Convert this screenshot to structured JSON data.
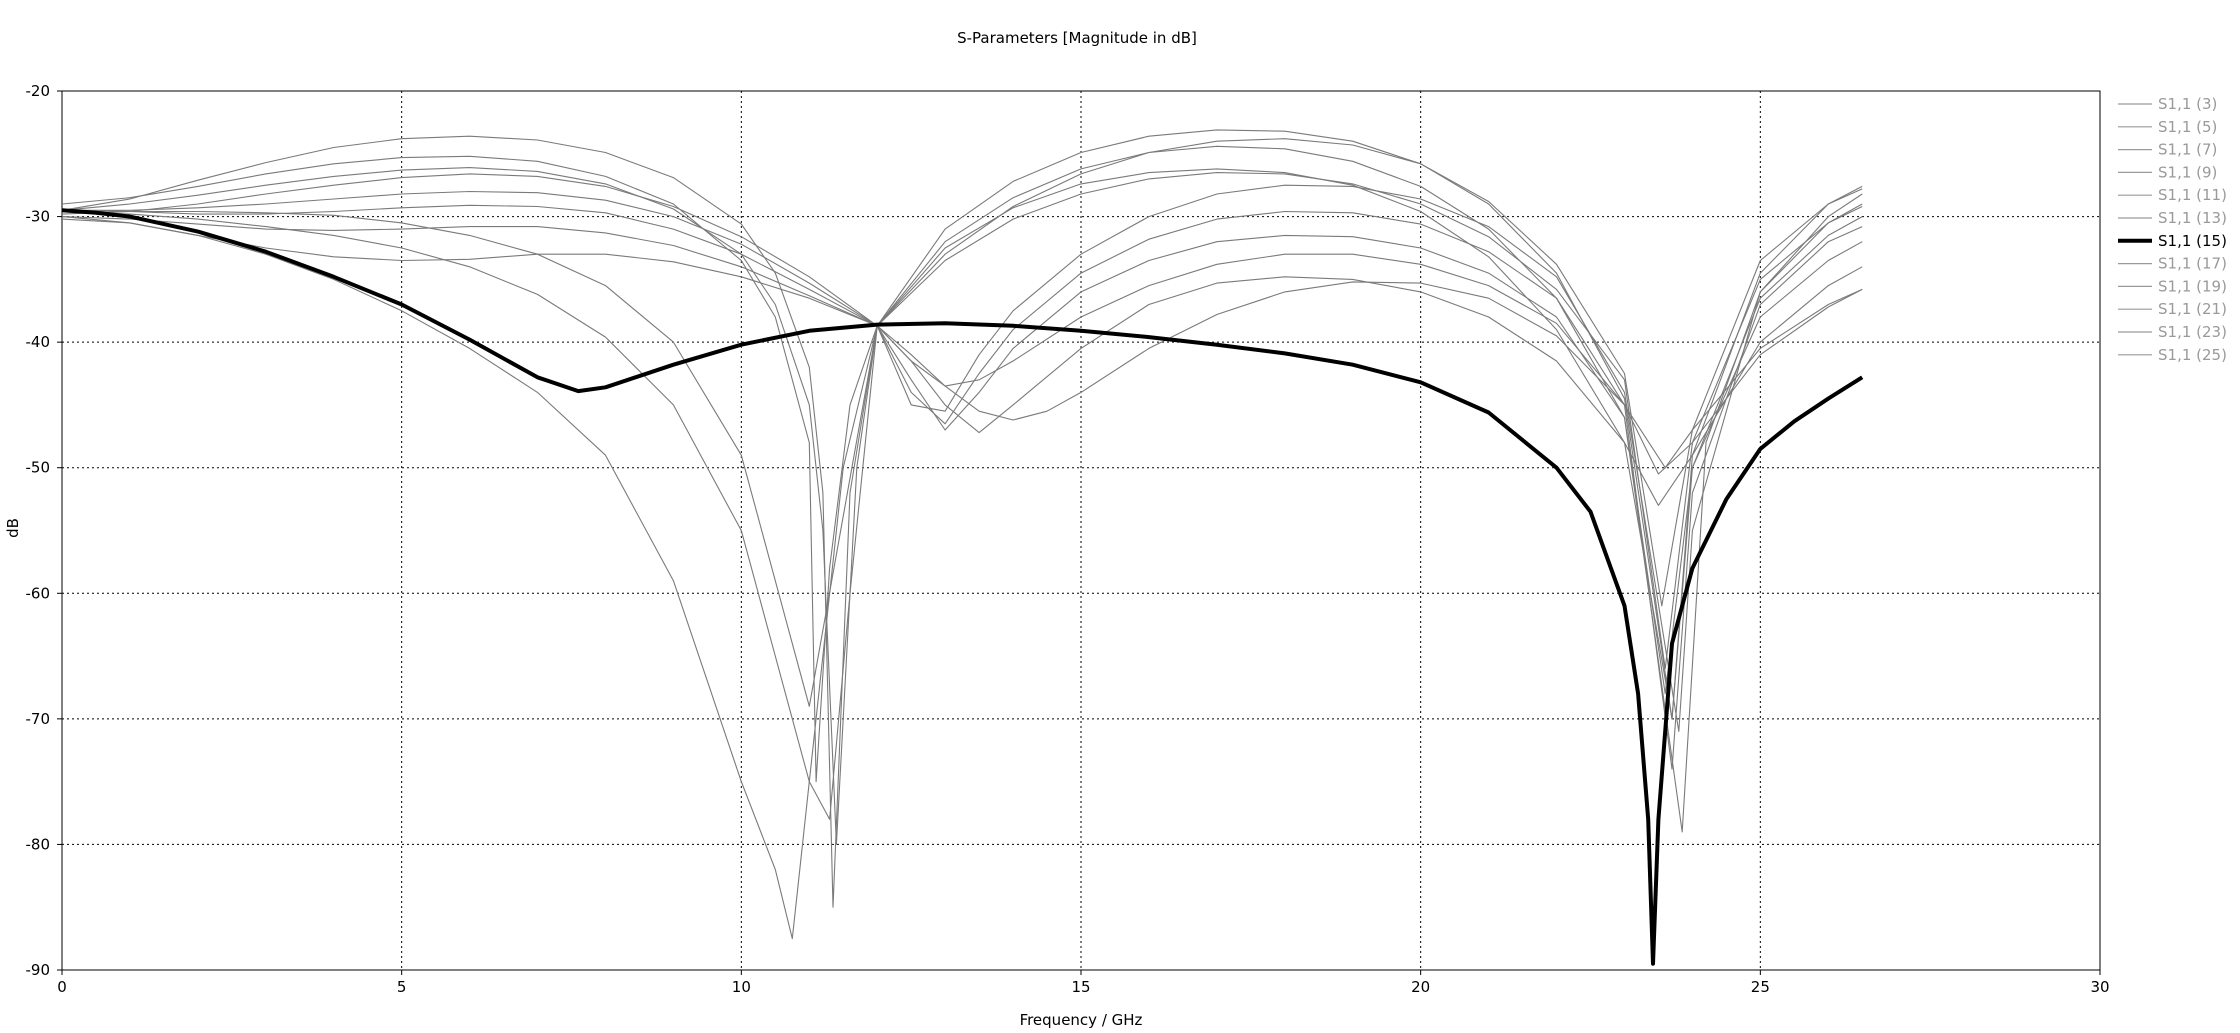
{
  "chart_data": {
    "type": "line",
    "title": "S-Parameters [Magnitude in dB]",
    "xlabel": "Frequency / GHz",
    "ylabel": "dB",
    "xlim": [
      0,
      30
    ],
    "ylim": [
      -90,
      -20
    ],
    "xticks": [
      0,
      5,
      10,
      15,
      20,
      25,
      30
    ],
    "yticks": [
      -20,
      -30,
      -40,
      -50,
      -60,
      -70,
      -80,
      -90
    ],
    "grid": true,
    "legend_position": "right",
    "colors": {
      "inactive": "#7a7a7a",
      "active": "#000000"
    },
    "series": [
      {
        "name": "S1,1 (3)",
        "active": false,
        "x": [
          0,
          1,
          2,
          3,
          4,
          5,
          6,
          7,
          8,
          9,
          10,
          11,
          12,
          12.5,
          13,
          13.5,
          14,
          14.5,
          15,
          16,
          17,
          18,
          19,
          20,
          21,
          22,
          23,
          23.5,
          24,
          25,
          26,
          26.5
        ],
        "y": [
          -30.2,
          -30.5,
          -31.5,
          -32.5,
          -33.2,
          -33.5,
          -33.4,
          -33.0,
          -33.0,
          -33.6,
          -34.8,
          -36.5,
          -38.7,
          -41,
          -43.5,
          -45.5,
          -46.2,
          -45.5,
          -44,
          -40.5,
          -37.8,
          -36,
          -35.2,
          -35.3,
          -36.5,
          -39.5,
          -45,
          -50.5,
          -48,
          -41,
          -37.2,
          -35.8
        ]
      },
      {
        "name": "S1,1 (5)",
        "active": false,
        "x": [
          0,
          1,
          2,
          3,
          4,
          5,
          6,
          7,
          8,
          9,
          10,
          11,
          12,
          12.5,
          13,
          13.5,
          14,
          15,
          16,
          17,
          18,
          19,
          20,
          21,
          22,
          23,
          23.5,
          24,
          25,
          26,
          26.5
        ],
        "y": [
          -30,
          -30.2,
          -30.6,
          -31,
          -31.1,
          -31,
          -30.8,
          -30.8,
          -31.3,
          -32.3,
          -34,
          -36.3,
          -38.7,
          -41.5,
          -45,
          -47.2,
          -45,
          -40.5,
          -37,
          -35.3,
          -34.8,
          -35,
          -36,
          -38,
          -41.5,
          -48,
          -53,
          -49,
          -40,
          -35.5,
          -34
        ]
      },
      {
        "name": "S1,1 (7)",
        "active": false,
        "x": [
          0,
          1,
          2,
          3,
          4,
          5,
          6,
          7,
          8,
          9,
          10,
          11,
          12,
          12.5,
          13,
          13.5,
          14,
          15,
          16,
          17,
          18,
          19,
          20,
          21,
          22,
          23,
          23.6,
          24,
          25,
          26,
          26.5
        ],
        "y": [
          -29.5,
          -29.6,
          -29.8,
          -29.8,
          -29.6,
          -29.3,
          -29.1,
          -29.2,
          -29.7,
          -31,
          -33,
          -35.8,
          -38.7,
          -43,
          -47,
          -44,
          -40.5,
          -36,
          -33.5,
          -32,
          -31.5,
          -31.6,
          -32.5,
          -34.5,
          -38,
          -46,
          -68,
          -50,
          -38,
          -33.5,
          -32
        ]
      },
      {
        "name": "S1,1 (9)",
        "active": false,
        "x": [
          0,
          1,
          2,
          3,
          4,
          5,
          6,
          7,
          8,
          9,
          10,
          11,
          12,
          12.5,
          13,
          13.5,
          14,
          15,
          16,
          17,
          18,
          19,
          20,
          21,
          22,
          23,
          23.7,
          24,
          25,
          26,
          26.5
        ],
        "y": [
          -29.5,
          -29.5,
          -29.3,
          -29,
          -28.6,
          -28.2,
          -28,
          -28.1,
          -28.7,
          -30,
          -32.2,
          -35.3,
          -38.7,
          -44,
          -46.5,
          -42.5,
          -39,
          -34.5,
          -31.8,
          -30.2,
          -29.6,
          -29.7,
          -30.6,
          -32.8,
          -36.5,
          -45,
          -74,
          -52,
          -37,
          -32,
          -30.8
        ]
      },
      {
        "name": "S1,1 (11)",
        "active": false,
        "x": [
          0,
          1,
          2,
          3,
          4,
          5,
          6,
          7,
          8,
          9,
          10,
          11,
          12,
          12.5,
          13,
          13.5,
          14,
          15,
          16,
          17,
          18,
          19,
          20,
          21,
          22,
          23,
          23.8,
          24,
          25,
          26,
          26.5
        ],
        "y": [
          -29.8,
          -29.6,
          -29.0,
          -28.2,
          -27.5,
          -26.9,
          -26.6,
          -26.8,
          -27.6,
          -29.2,
          -31.6,
          -34.8,
          -38.7,
          -45,
          -45.5,
          -41,
          -37.5,
          -33,
          -30,
          -28.2,
          -27.5,
          -27.6,
          -28.6,
          -30.8,
          -34.8,
          -44,
          -71,
          -55,
          -36,
          -30.5,
          -29.2
        ]
      },
      {
        "name": "S1,1 (13)",
        "active": false,
        "x": [
          0,
          1,
          2,
          3,
          4,
          5,
          6,
          7,
          8,
          9,
          10,
          11,
          12,
          12.5,
          13,
          13.5,
          14,
          15,
          16,
          17,
          18,
          19,
          20,
          21,
          22,
          23,
          23.6,
          24,
          25,
          26,
          26.5
        ],
        "y": [
          -29.5,
          -29.6,
          -29.6,
          -29.7,
          -29.9,
          -30.5,
          -31.5,
          -33.0,
          -35.5,
          -40,
          -49,
          -69,
          -38.7,
          -41.5,
          -43.5,
          -43,
          -41.5,
          -38,
          -35.5,
          -33.8,
          -33,
          -33,
          -33.8,
          -35.5,
          -38.5,
          -45,
          -50,
          -47,
          -40.5,
          -37,
          -35.8
        ]
      },
      {
        "name": "S1,1 (15)",
        "active": true,
        "x": [
          0,
          0.5,
          1,
          2,
          3,
          4,
          5,
          6,
          7,
          7.6,
          8,
          9,
          10,
          11,
          12,
          13,
          14,
          15,
          16,
          17,
          18,
          19,
          20,
          21,
          22,
          22.5,
          23,
          23.2,
          23.35,
          23.42,
          23.5,
          23.7,
          24,
          24.5,
          25,
          25.5,
          26,
          26.5
        ],
        "y": [
          -29.5,
          -29.7,
          -30,
          -31.2,
          -32.8,
          -34.8,
          -37,
          -39.8,
          -42.8,
          -43.9,
          -43.6,
          -41.8,
          -40.2,
          -39.1,
          -38.6,
          -38.5,
          -38.7,
          -39.1,
          -39.6,
          -40.2,
          -40.9,
          -41.8,
          -43.2,
          -45.6,
          -50,
          -53.5,
          -61,
          -68,
          -78,
          -89.5,
          -78,
          -64,
          -58,
          -52.5,
          -48.5,
          -46.3,
          -44.5,
          -42.8
        ]
      },
      {
        "name": "S1,1 (17)",
        "active": false,
        "x": [
          0,
          1,
          2,
          3,
          4,
          5,
          6,
          7,
          8,
          9,
          9.5,
          10,
          10.5,
          10.75,
          11,
          11.5,
          12,
          13,
          14,
          15,
          16,
          17,
          18,
          19,
          20,
          21,
          22,
          23,
          23.55,
          24,
          25,
          26,
          26.5
        ],
        "y": [
          -30,
          -30.5,
          -31.5,
          -33,
          -35,
          -37.5,
          -40.5,
          -44,
          -49,
          -59,
          -67,
          -75,
          -82,
          -87.5,
          -75,
          -50,
          -38.7,
          -33,
          -29.2,
          -26.6,
          -24.9,
          -24,
          -23.8,
          -24.3,
          -25.8,
          -28.8,
          -33.8,
          -42.5,
          -61,
          -47,
          -33.5,
          -29,
          -27.8
        ]
      },
      {
        "name": "S1,1 (19)",
        "active": false,
        "x": [
          0,
          1,
          2,
          3,
          4,
          5,
          6,
          7,
          8,
          9,
          10,
          10.5,
          11,
          11.3,
          11.6,
          12,
          13,
          14,
          15,
          16,
          17,
          18,
          19,
          20,
          21,
          22,
          23,
          23.6,
          24,
          25,
          26,
          26.5
        ],
        "y": [
          -29.5,
          -29.8,
          -30.2,
          -30.8,
          -31.5,
          -32.5,
          -34,
          -36.2,
          -39.6,
          -45,
          -55,
          -65,
          -75,
          -78,
          -60,
          -38.7,
          -33.5,
          -30.2,
          -28.2,
          -27,
          -26.5,
          -26.6,
          -27.4,
          -29,
          -31.6,
          -35.8,
          -43,
          -66,
          -48,
          -35,
          -30.5,
          -29
        ]
      },
      {
        "name": "S1,1 (21)",
        "active": false,
        "x": [
          0,
          1,
          2,
          3,
          4,
          5,
          6,
          7,
          8,
          9,
          10,
          10.5,
          11,
          11.1,
          11.3,
          11.6,
          12,
          13,
          14,
          15,
          16,
          17,
          18,
          19,
          20,
          21,
          22,
          23,
          23.85,
          24.2,
          25,
          26,
          26.5
        ],
        "y": [
          -29,
          -28.5,
          -27.6,
          -26.6,
          -25.8,
          -25.3,
          -25.2,
          -25.6,
          -26.8,
          -29,
          -33.5,
          -38,
          -48,
          -75,
          -58,
          -45,
          -38.7,
          -32,
          -28.5,
          -26.2,
          -24.9,
          -24.4,
          -24.6,
          -25.6,
          -27.6,
          -31,
          -36.5,
          -46,
          -79,
          -48,
          -36,
          -30,
          -28.2
        ]
      },
      {
        "name": "S1,1 (23)",
        "active": false,
        "x": [
          0,
          1,
          2,
          3,
          4,
          5,
          6,
          7,
          8,
          9,
          10,
          10.5,
          11,
          11.2,
          11.4,
          11.7,
          12,
          13,
          14,
          15,
          16,
          17,
          18,
          19,
          20,
          21,
          22,
          23,
          23.7,
          24,
          25,
          26,
          26.5
        ],
        "y": [
          -29.5,
          -29,
          -28.3,
          -27.5,
          -26.8,
          -26.3,
          -26.1,
          -26.4,
          -27.4,
          -29.4,
          -33,
          -37,
          -45,
          -55,
          -80,
          -50,
          -38.7,
          -32.5,
          -29.3,
          -27.4,
          -26.5,
          -26.2,
          -26.5,
          -27.5,
          -29.6,
          -33.2,
          -39,
          -48,
          -70,
          -50,
          -36.5,
          -31.5,
          -30
        ]
      },
      {
        "name": "S1,1 (25)",
        "active": false,
        "x": [
          0,
          1,
          2,
          3,
          4,
          5,
          6,
          7,
          8,
          9,
          10,
          10.5,
          11,
          11.2,
          11.35,
          11.6,
          12,
          13,
          14,
          15,
          16,
          17,
          18,
          19,
          20,
          21,
          22,
          23,
          23.7,
          24,
          25,
          26,
          26.5
        ],
        "y": [
          -29.5,
          -28.6,
          -27.1,
          -25.7,
          -24.5,
          -23.8,
          -23.6,
          -23.9,
          -24.9,
          -26.9,
          -30.6,
          -34.5,
          -42,
          -52,
          -85,
          -52,
          -38.7,
          -31,
          -27.2,
          -24.9,
          -23.6,
          -23.1,
          -23.2,
          -24,
          -25.8,
          -29,
          -34.5,
          -44.5,
          -70,
          -49,
          -34.5,
          -29,
          -27.6
        ]
      }
    ]
  }
}
